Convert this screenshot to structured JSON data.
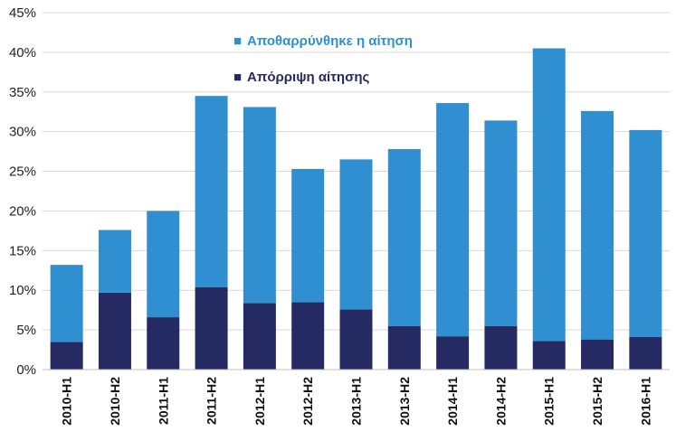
{
  "chart_data": {
    "type": "bar",
    "stacked": true,
    "title": "",
    "xlabel": "",
    "ylabel": "",
    "ylim": [
      0,
      45
    ],
    "yticks": [
      "0%",
      "5%",
      "10%",
      "15%",
      "20%",
      "25%",
      "30%",
      "35%",
      "40%",
      "45%"
    ],
    "ytick_values": [
      0,
      5,
      10,
      15,
      20,
      25,
      30,
      35,
      40,
      45
    ],
    "grid": true,
    "legend_position": "top-center",
    "categories": [
      "2010-H1",
      "2010-H2",
      "2011-H1",
      "2011-H2",
      "2012-H1",
      "2012-H2",
      "2013-H1",
      "2013-H2",
      "2014-H1",
      "2014-H2",
      "2015-H1",
      "2015-H2",
      "2016-H1"
    ],
    "series": [
      {
        "name": "Απόρριψη αίτησης",
        "color": "#262a63",
        "values": [
          3.5,
          9.7,
          6.6,
          10.4,
          8.4,
          8.5,
          7.6,
          5.5,
          4.2,
          5.5,
          3.6,
          3.8,
          4.1
        ]
      },
      {
        "name": "Αποθαρρύνθηκε η αίτηση",
        "color": "#2f8fd1",
        "values": [
          9.7,
          7.9,
          13.4,
          24.1,
          24.7,
          16.8,
          18.9,
          22.3,
          29.4,
          25.9,
          36.9,
          28.8,
          26.1
        ]
      }
    ],
    "legend": [
      {
        "label": "Αποθαρρύνθηκε η αίτηση",
        "marker": "■",
        "color": "#2f8fd1"
      },
      {
        "label": "Απόρριψη αίτησης",
        "marker": "■",
        "color": "#262a63"
      }
    ]
  }
}
